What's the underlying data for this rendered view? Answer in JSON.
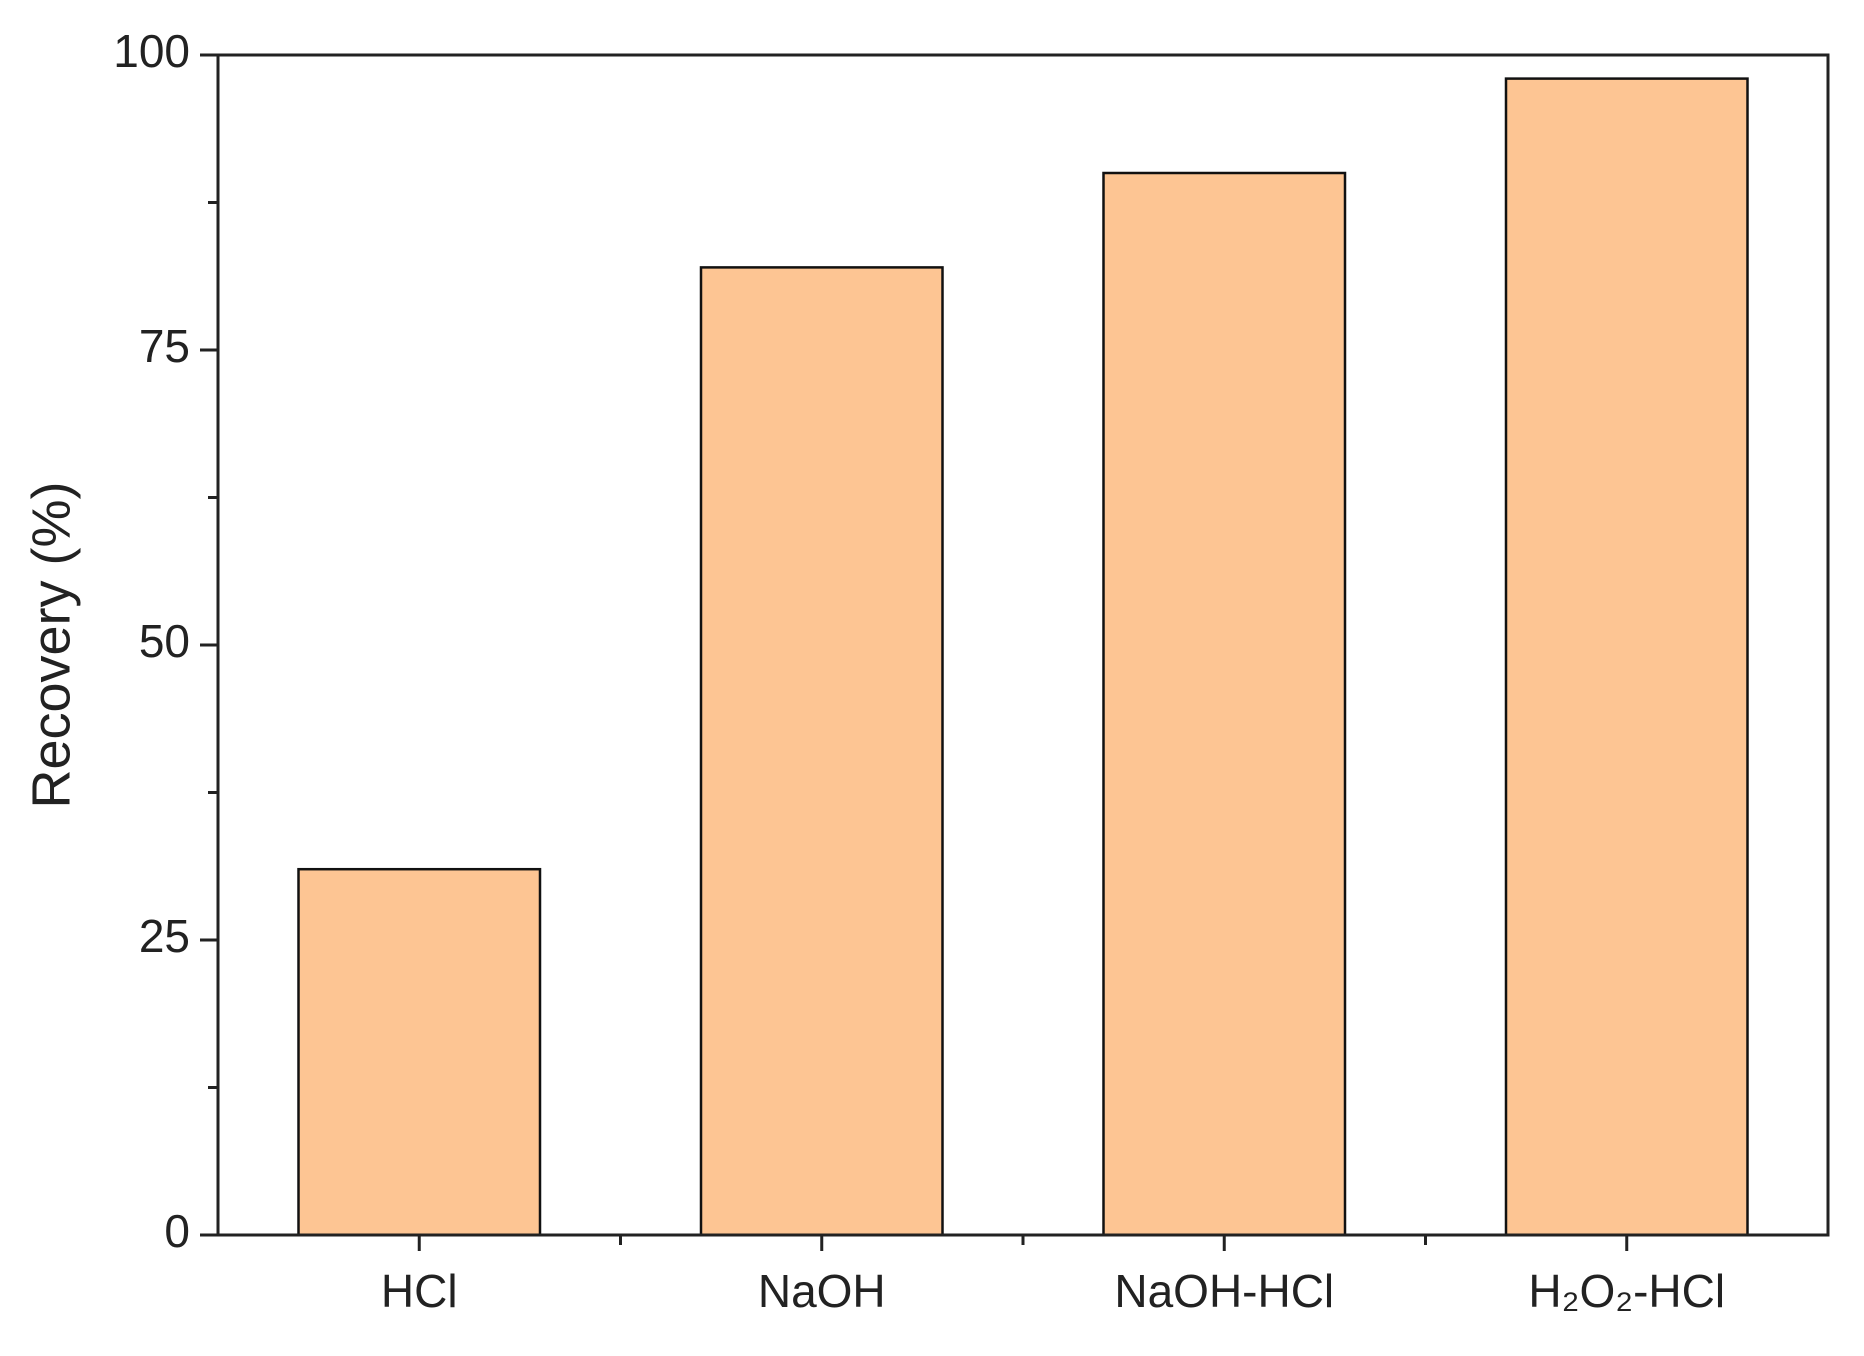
{
  "chart_data": {
    "type": "bar",
    "y_label": "Recovery (%)",
    "categories": [
      "HCl",
      "NaOH",
      "NaOH-HCl",
      "H₂O₂-HCl"
    ],
    "values": [
      31,
      82,
      90,
      98
    ],
    "color": "#fdc593",
    "ylim": [
      0,
      100
    ],
    "yticks": [
      0,
      25,
      50,
      75,
      100
    ],
    "grid": false
  }
}
